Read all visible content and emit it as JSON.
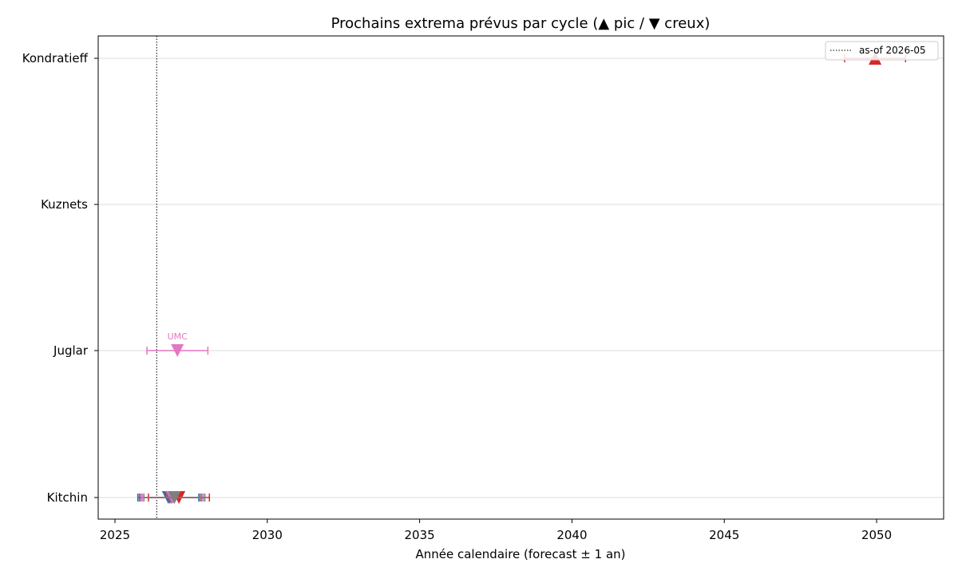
{
  "chart_data": {
    "type": "scatter",
    "title": "Prochains extrema prévus par cycle (▲ pic / ▼ creux)",
    "xlabel": "Année calendaire (forecast ± 1 an)",
    "ylabel": "",
    "xlim": [
      2024.45,
      2052.2
    ],
    "x_ticks": [
      2025,
      2030,
      2035,
      2040,
      2045,
      2050
    ],
    "categories": [
      "Kitchin",
      "Juglar",
      "Kuznets",
      "Kondratieff"
    ],
    "grid": "horizontal",
    "asof": {
      "x": 2026.37,
      "label": "as-of 2026-05"
    },
    "legend": {
      "position": "top-right",
      "entries": [
        "as-of 2026-05"
      ]
    },
    "markers": {
      "peak": "▲",
      "trough": "▼"
    },
    "points": [
      {
        "cycle": "Kitchin",
        "x": 2026.75,
        "kind": "trough",
        "err": 1.0,
        "color": "#1f77b4",
        "label": ""
      },
      {
        "cycle": "Kitchin",
        "x": 2026.8,
        "kind": "trough",
        "err": 1.0,
        "color": "#8c564b",
        "label": ""
      },
      {
        "cycle": "Kitchin",
        "x": 2026.85,
        "kind": "trough",
        "err": 1.0,
        "color": "#9467bd",
        "label": ""
      },
      {
        "cycle": "Kitchin",
        "x": 2026.9,
        "kind": "trough",
        "err": 1.0,
        "color": "#e377c2",
        "label": ""
      },
      {
        "cycle": "Kitchin",
        "x": 2027.1,
        "kind": "trough",
        "err": 1.0,
        "color": "#d62728",
        "label": ""
      },
      {
        "cycle": "Kitchin",
        "x": 2026.95,
        "kind": "trough",
        "err": 1.0,
        "color": "#7f7f7f",
        "label": ""
      },
      {
        "cycle": "Juglar",
        "x": 2027.05,
        "kind": "trough",
        "err": 1.0,
        "color": "#e377c2",
        "label": "UMC"
      },
      {
        "cycle": "Kondratieff",
        "x": 2049.95,
        "kind": "peak",
        "err": 1.0,
        "color": "#d62728",
        "label": ""
      }
    ]
  }
}
